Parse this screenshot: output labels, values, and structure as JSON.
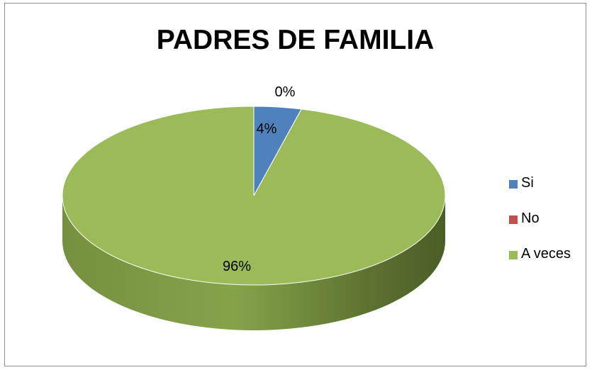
{
  "chart_data": {
    "type": "pie",
    "title": "PADRES DE FAMILIA",
    "categories": [
      "Si",
      "No",
      "A veces"
    ],
    "values": [
      4,
      0,
      96
    ],
    "data_labels": [
      "4%",
      "0%",
      "96%"
    ],
    "colors": [
      "#4f81bd",
      "#c0504d",
      "#9bbb59"
    ],
    "legend_position": "right",
    "style": "3d"
  }
}
